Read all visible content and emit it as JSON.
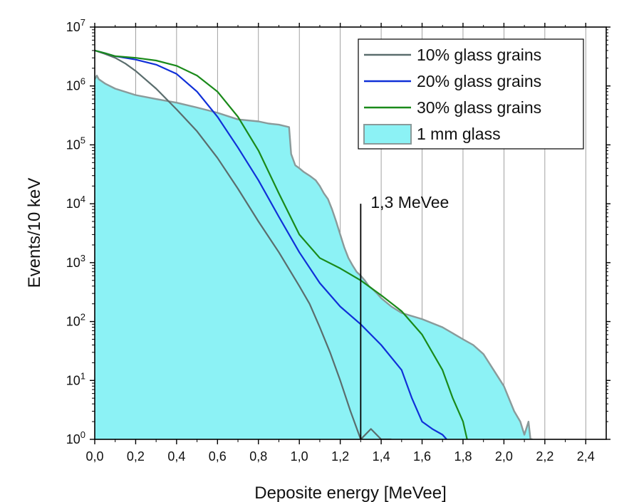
{
  "chart_data": {
    "type": "line",
    "xlabel": "Deposite energy [MeVee]",
    "ylabel": "Events/10 keV",
    "xlim": [
      0.0,
      2.5
    ],
    "ylim_exponent": [
      0,
      7
    ],
    "y_scale": "log",
    "grid": "vertical gridlines only",
    "legend_position": "top-right",
    "x_ticks": [
      "0,0",
      "0,2",
      "0,4",
      "0,6",
      "0,8",
      "1,0",
      "1,2",
      "1,4",
      "1,6",
      "1,8",
      "2,0",
      "2,2",
      "2,4"
    ],
    "x_tick_values": [
      0.0,
      0.2,
      0.4,
      0.6,
      0.8,
      1.0,
      1.2,
      1.4,
      1.6,
      1.8,
      2.0,
      2.2,
      2.4
    ],
    "y_tick_exponents": [
      0,
      1,
      2,
      3,
      4,
      5,
      6,
      7
    ],
    "y_tick_base": "10",
    "annotation": {
      "text": "1,3 MeVee",
      "x": 1.3,
      "y_top_exp": 4.0
    },
    "series": [
      {
        "name": "1 mm glass",
        "kind": "area",
        "color": "#8a9a9a",
        "fill": "#8cf2f5",
        "x": [
          0.0,
          0.01,
          0.02,
          0.05,
          0.1,
          0.2,
          0.3,
          0.4,
          0.5,
          0.6,
          0.7,
          0.8,
          0.85,
          0.9,
          0.95,
          0.96,
          0.98,
          1.0,
          1.02,
          1.05,
          1.08,
          1.1,
          1.12,
          1.14,
          1.16,
          1.18,
          1.2,
          1.22,
          1.24,
          1.26,
          1.28,
          1.3,
          1.32,
          1.34,
          1.36,
          1.38,
          1.4,
          1.45,
          1.5,
          1.6,
          1.7,
          1.8,
          1.85,
          1.9,
          1.95,
          2.0,
          2.05,
          2.08,
          2.1,
          2.12,
          2.13,
          2.14
        ],
        "y": [
          1300000,
          1500000,
          1300000,
          1100000,
          900000,
          700000,
          600000,
          520000,
          430000,
          350000,
          270000,
          250000,
          230000,
          220000,
          200000,
          70000,
          45000,
          40000,
          35000,
          30000,
          25000,
          20000,
          15000,
          12000,
          8000,
          5000,
          3000,
          1800,
          1200,
          900,
          700,
          600,
          500,
          400,
          350,
          300,
          250,
          180,
          140,
          110,
          80,
          50,
          40,
          28,
          15,
          8,
          3,
          2,
          1.2,
          2,
          1,
          1
        ]
      },
      {
        "name": "10% glass grains",
        "kind": "line",
        "color": "#5a6d6d",
        "x": [
          0.0,
          0.05,
          0.1,
          0.15,
          0.2,
          0.3,
          0.4,
          0.5,
          0.6,
          0.7,
          0.8,
          0.9,
          1.0,
          1.05,
          1.1,
          1.15,
          1.2,
          1.25,
          1.3,
          1.35,
          1.4,
          1.45
        ],
        "y": [
          4000000,
          3500000,
          3000000,
          2400000,
          1800000,
          900000,
          400000,
          170000,
          60000,
          18000,
          5000,
          1500,
          400,
          200,
          80,
          30,
          10,
          3,
          1,
          1.5,
          1,
          1
        ]
      },
      {
        "name": "20% glass grains",
        "kind": "line",
        "color": "#1030d8",
        "x": [
          0.0,
          0.05,
          0.1,
          0.2,
          0.3,
          0.4,
          0.5,
          0.6,
          0.7,
          0.8,
          0.9,
          1.0,
          1.1,
          1.2,
          1.3,
          1.4,
          1.5,
          1.55,
          1.6,
          1.65,
          1.7,
          1.72
        ],
        "y": [
          4000000,
          3600000,
          3200000,
          2800000,
          2300000,
          1600000,
          800000,
          300000,
          90000,
          25000,
          6000,
          1500,
          450,
          180,
          90,
          40,
          15,
          5,
          2,
          1.5,
          1.2,
          1
        ]
      },
      {
        "name": "30% glass grains",
        "kind": "line",
        "color": "#1a8a1a",
        "x": [
          0.0,
          0.05,
          0.1,
          0.2,
          0.3,
          0.4,
          0.5,
          0.6,
          0.7,
          0.8,
          0.9,
          1.0,
          1.1,
          1.2,
          1.3,
          1.4,
          1.5,
          1.6,
          1.7,
          1.75,
          1.8,
          1.82
        ],
        "y": [
          4000000,
          3600000,
          3200000,
          3000000,
          2700000,
          2200000,
          1500000,
          800000,
          300000,
          80000,
          15000,
          3000,
          1200,
          800,
          500,
          280,
          150,
          60,
          15,
          5,
          2,
          1
        ]
      }
    ]
  }
}
